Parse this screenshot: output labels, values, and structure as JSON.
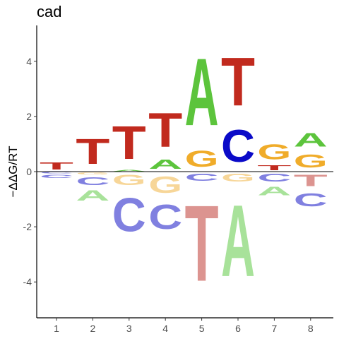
{
  "chart_data": {
    "type": "sequence-logo",
    "title": "cad",
    "xlabel": "",
    "ylabel": "−ΔΔG/RT",
    "ylim": [
      -5.3,
      5.3
    ],
    "xticks": [
      1,
      2,
      3,
      4,
      5,
      6,
      7,
      8
    ],
    "yticks": [
      -4,
      -2,
      0,
      2,
      4
    ],
    "grid": false,
    "baseline": 0,
    "colors": {
      "A": "#5cc43c",
      "C": "#0a0ac8",
      "G": "#f0ac2a",
      "T": "#c12a1e",
      "A_neg": "#a8e29a",
      "C_neg": "#8080e0",
      "G_neg": "#f7d698",
      "T_neg": "#dc9490"
    },
    "positions": [
      {
        "pos": 1,
        "positive": [
          {
            "base": "T",
            "value": 0.42
          }
        ],
        "negative": [
          {
            "base": "C",
            "value": -0.08
          },
          {
            "base": "C",
            "value": -0.18
          }
        ]
      },
      {
        "pos": 2,
        "positive": [
          {
            "base": "T",
            "value": 1.45
          }
        ],
        "negative": [
          {
            "base": "G",
            "value": -0.12
          },
          {
            "base": "C",
            "value": -0.45
          },
          {
            "base": "A",
            "value": -0.6
          }
        ]
      },
      {
        "pos": 3,
        "positive": [
          {
            "base": "A",
            "value": 0.08
          },
          {
            "base": "T",
            "value": 1.92
          }
        ],
        "negative": [
          {
            "base": "G",
            "value": -0.6
          },
          {
            "base": "C",
            "value": -1.95
          }
        ]
      },
      {
        "pos": 4,
        "positive": [
          {
            "base": "A",
            "value": 0.52
          },
          {
            "base": "T",
            "value": 1.98
          }
        ],
        "negative": [
          {
            "base": "G",
            "value": -0.95
          },
          {
            "base": "C",
            "value": -1.4
          }
        ]
      },
      {
        "pos": 5,
        "positive": [
          {
            "base": "G",
            "value": 0.92
          },
          {
            "base": "A",
            "value": 3.9
          }
        ],
        "negative": [
          {
            "base": "C",
            "value": -0.42
          },
          {
            "base": "T",
            "value": -4.4
          }
        ]
      },
      {
        "pos": 6,
        "positive": [
          {
            "base": "C",
            "value": 1.85
          },
          {
            "base": "T",
            "value": 2.8
          }
        ],
        "negative": [
          {
            "base": "G",
            "value": -0.45
          },
          {
            "base": "A",
            "value": -4.15
          }
        ]
      },
      {
        "pos": 7,
        "positive": [
          {
            "base": "T",
            "value": 0.28
          },
          {
            "base": "G",
            "value": 0.88
          }
        ],
        "negative": [
          {
            "base": "C",
            "value": -0.45
          },
          {
            "base": "A",
            "value": -0.5
          }
        ]
      },
      {
        "pos": 8,
        "positive": [
          {
            "base": "G",
            "value": 0.75
          },
          {
            "base": "A",
            "value": 0.8
          }
        ],
        "negative": [
          {
            "base": "T",
            "value": -0.65
          },
          {
            "base": "C",
            "value": -0.75
          }
        ]
      }
    ]
  }
}
